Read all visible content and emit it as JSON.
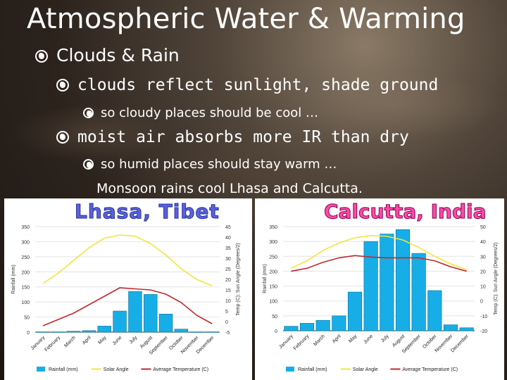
{
  "slide": {
    "title": "Atmospheric Water & Warming",
    "bullet1": "Clouds & Rain",
    "bullet2": "clouds reflect sunlight, shade ground",
    "bullet3": "so cloudy places should be cool …",
    "bullet4": "moist air absorbs more IR than dry",
    "bullet5": "so humid places should stay warm …",
    "caption": "Monsoon rains cool Lhasa and Calcutta."
  },
  "colors": {
    "bar": "#17aee8",
    "sun": "#f2e63a",
    "temp": "#c0282c"
  },
  "chart_data": [
    {
      "type": "bar",
      "title": "Lhasa, Tibet",
      "categories": [
        "January",
        "February",
        "March",
        "April",
        "May",
        "June",
        "July",
        "August",
        "September",
        "October",
        "November",
        "December"
      ],
      "ylabel": "Rainfall (mm)",
      "y2label": "Temp (C); Sun Angle (Degrees/2)",
      "ylim": [
        0,
        350
      ],
      "y2lim": [
        -5,
        45
      ],
      "yticks": [
        "0",
        "50",
        "100",
        "150",
        "200",
        "250",
        "300",
        "350"
      ],
      "y2ticks": [
        "-5",
        "0",
        "5",
        "10",
        "15",
        "20",
        "25",
        "30",
        "35",
        "40",
        "45"
      ],
      "series": [
        {
          "name": "Rainfall (mm)",
          "kind": "bar",
          "axis": "left",
          "values": [
            1,
            1,
            3,
            5,
            20,
            70,
            135,
            125,
            60,
            10,
            1,
            1
          ]
        },
        {
          "name": "Solar Angle",
          "kind": "line",
          "axis": "right",
          "values": [
            18,
            23,
            29,
            35,
            39.5,
            41,
            40.5,
            37,
            31.5,
            25,
            20,
            17
          ]
        },
        {
          "name": "Average Temperature (C)",
          "kind": "line",
          "axis": "right",
          "values": [
            -2,
            1,
            4,
            8,
            12,
            16,
            15.5,
            15,
            13,
            9,
            3,
            -1
          ]
        }
      ],
      "legend": "bottom"
    },
    {
      "type": "bar",
      "title": "Calcutta, India",
      "categories": [
        "January",
        "February",
        "March",
        "April",
        "May",
        "June",
        "July",
        "August",
        "September",
        "October",
        "November",
        "December"
      ],
      "ylabel": "Rainfall (mm)",
      "y2label": "Temp (C); Sun Angle (Degrees/2)",
      "ylim": [
        0,
        350
      ],
      "y2lim": [
        -20,
        50
      ],
      "yticks": [
        "0",
        "50",
        "100",
        "150",
        "200",
        "250",
        "300",
        "350"
      ],
      "y2ticks": [
        "-20",
        "-10",
        "0",
        "10",
        "20",
        "30",
        "40",
        "50"
      ],
      "series": [
        {
          "name": "Rainfall (mm)",
          "kind": "bar",
          "axis": "left",
          "values": [
            15,
            25,
            35,
            50,
            130,
            300,
            325,
            340,
            260,
            135,
            20,
            10
          ]
        },
        {
          "name": "Solar Angle",
          "kind": "line",
          "axis": "right",
          "values": [
            22,
            27,
            34,
            39,
            42.5,
            44,
            43.5,
            41,
            36,
            30,
            25,
            21
          ]
        },
        {
          "name": "Average Temperature (C)",
          "kind": "line",
          "axis": "right",
          "values": [
            20,
            22,
            26,
            29,
            30.5,
            29.5,
            29,
            29,
            29,
            27,
            23,
            20
          ]
        }
      ],
      "legend": "bottom"
    }
  ]
}
